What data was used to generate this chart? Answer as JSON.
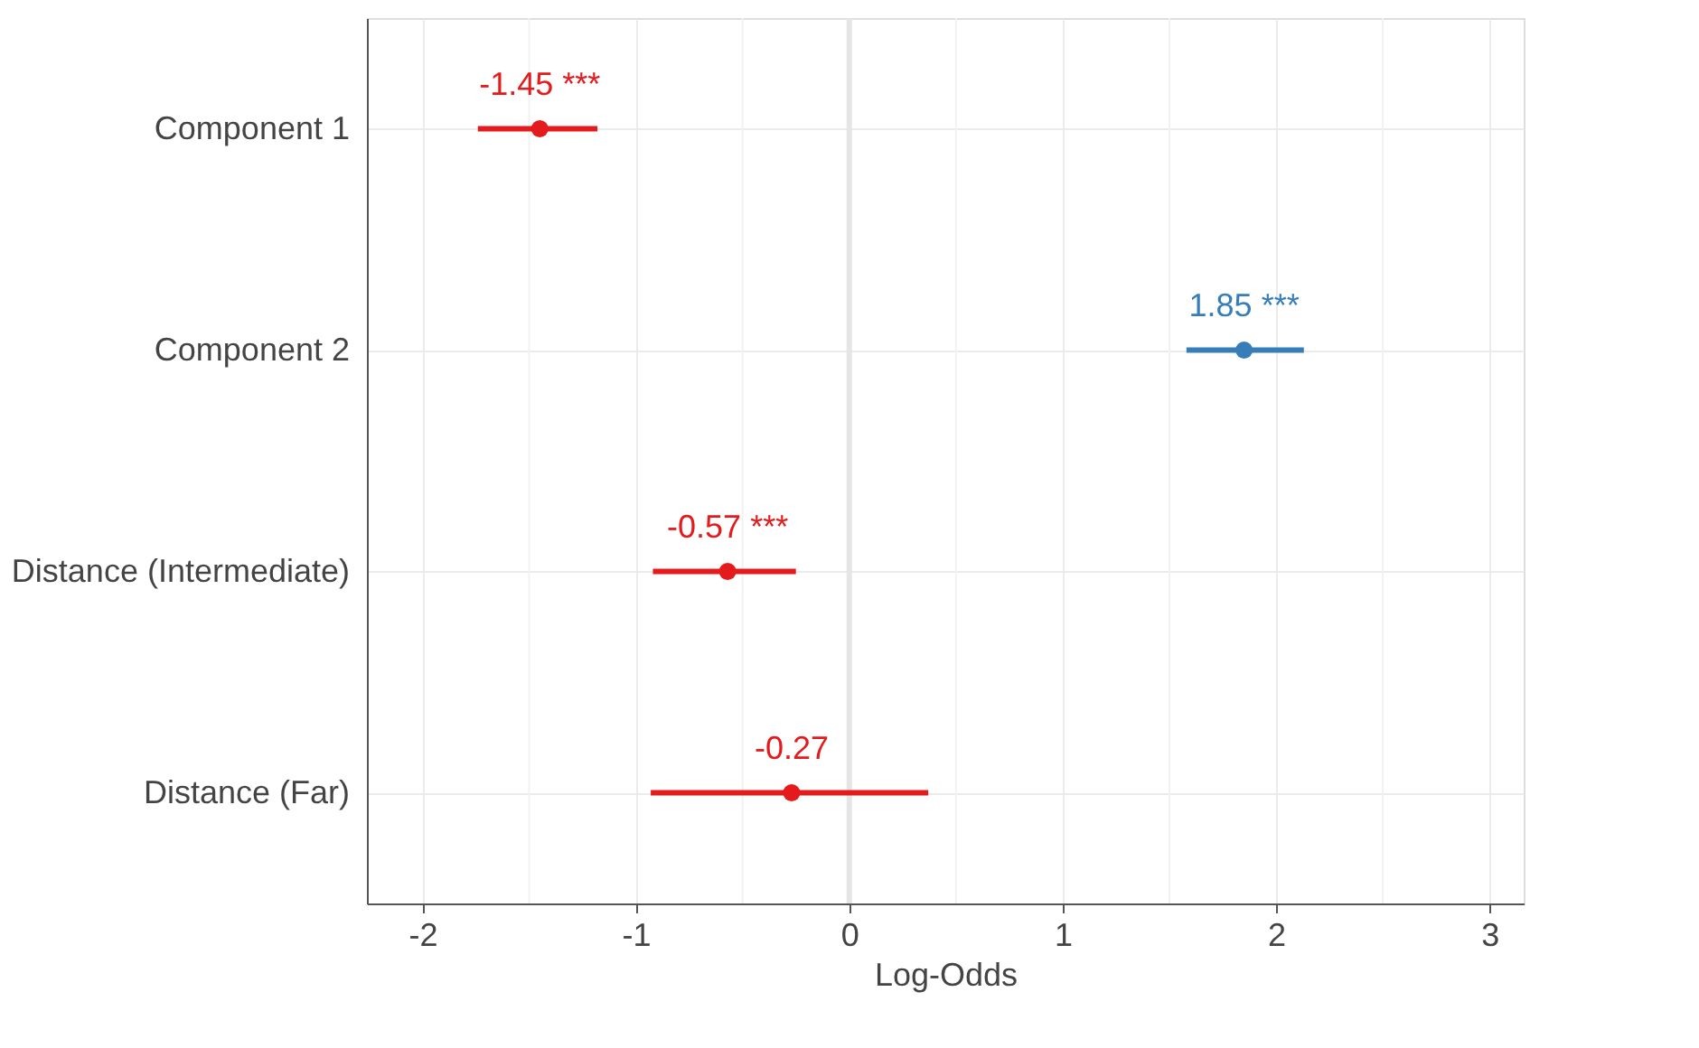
{
  "chart_data": {
    "type": "scatter",
    "orientation": "horizontal",
    "xlabel": "Log-Odds",
    "categories": [
      "Component 1",
      "Component 2",
      "Distance (Intermediate)",
      "Distance (Far)"
    ],
    "values": [
      -1.45,
      1.85,
      -0.57,
      -0.27
    ],
    "errors": [
      [
        -1.74,
        -1.18
      ],
      [
        1.58,
        2.13
      ],
      [
        -0.92,
        -0.25
      ],
      [
        -0.93,
        0.37
      ]
    ],
    "colors": [
      "#e41a1c",
      "#377eb8",
      "#e41a1c",
      "#e41a1c"
    ],
    "value_labels": [
      "-1.45 ***",
      "1.85 ***",
      "-0.57 ***",
      "-0.27"
    ],
    "xlim": [
      -2.26,
      3.16
    ],
    "xticks": [
      -2,
      -1,
      0,
      1,
      2,
      3
    ],
    "ref_lines": [
      {
        "axis": "x",
        "value": 0,
        "color": "#e5e5e5"
      }
    ],
    "grid": true,
    "marker": "circle"
  }
}
